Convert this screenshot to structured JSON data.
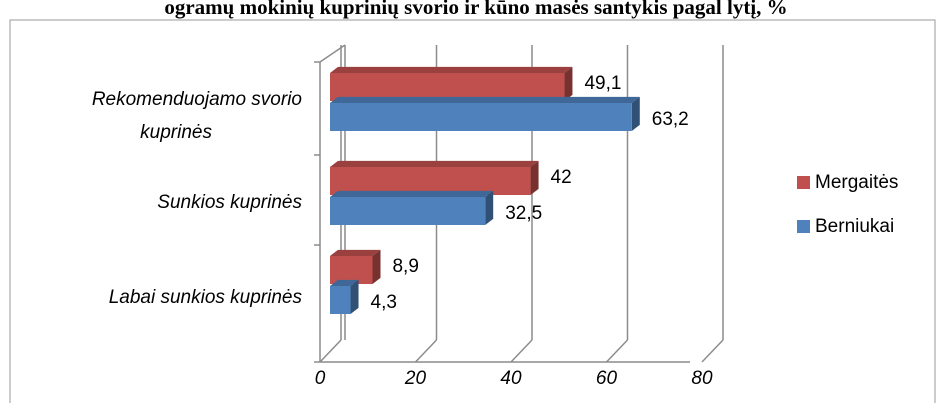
{
  "chart_data": {
    "type": "bar",
    "orientation": "horizontal",
    "title": "ogramų mokinių kuprinių svorio ir kūno masės santykis pagal lytį, %",
    "categories": [
      "Rekomenduojamo svorio kuprinės",
      "Sunkios kuprinės",
      "Labai sunkios kuprinės"
    ],
    "category_lines": [
      [
        "Rekomenduojamo svorio",
        "kuprinės"
      ],
      [
        "Sunkios kuprinės"
      ],
      [
        "Labai sunkios kuprinės"
      ]
    ],
    "series": [
      {
        "name": "Mergaitės",
        "values": [
          49.1,
          42,
          8.9
        ],
        "labels": [
          "49,1",
          "42",
          "8,9"
        ],
        "color": "#c0504d"
      },
      {
        "name": "Berniukai",
        "values": [
          63.2,
          32.5,
          4.3
        ],
        "labels": [
          "63,2",
          "32,5",
          "4,3"
        ],
        "color": "#4f81bd"
      }
    ],
    "xlim": [
      0,
      80
    ],
    "ticks": [
      0,
      20,
      40,
      60,
      80
    ],
    "tick_labels": [
      "0",
      "20",
      "40",
      "60",
      "80"
    ],
    "grid": true,
    "legend_position": "right",
    "three_d": true
  }
}
